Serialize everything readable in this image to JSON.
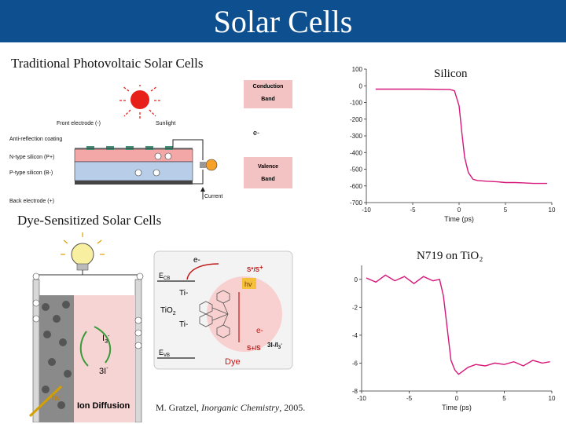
{
  "slide": {
    "title": "Solar Cells",
    "heading_traditional": "Traditional Photovoltaic Solar Cells",
    "heading_dye": "Dye-Sensitized Solar Cells",
    "citation_prefix": "M. Gratzel, ",
    "citation_journal": "Inorganic Chemistry",
    "citation_suffix": ", 2005."
  },
  "pv_diagram": {
    "labels": [
      "Front electrode (-)",
      "Sunlight",
      "Anti-reflection coating",
      "N-type silicon (P+)",
      "P-type silicon (B-)",
      "Back electrode (+)",
      "Current"
    ],
    "band": {
      "conduction1": "Conduction",
      "conduction2": "Band",
      "electron": "e-",
      "valence1": "Valence",
      "valence2": "Band"
    }
  },
  "dssc_diagram": {
    "labels": {
      "ecb": "E",
      "ecb_sub": "CB",
      "ti1": "Ti-",
      "tio2": "TiO",
      "tio2_sub": "2",
      "ti2": "Ti-",
      "evb": "E",
      "evb_sub": "VB",
      "electron": "e-",
      "electron2": "e-",
      "ss1": "S",
      "ss1b": "*/S",
      "ss1c": "+",
      "ss2": "S",
      "ss2b": "+/S",
      "hv": "hv",
      "hv2": "hv",
      "i3": "I",
      "i3_sub": "3",
      "i3_sup": "-",
      "three_i": "3I",
      "three_i_sup": "-",
      "right_i": "3I-/I",
      "right_i_sub": "3",
      "right_i_sup": "-",
      "dye": "Dye",
      "ion": "Ion Diffusion"
    }
  },
  "colors": {
    "banner": "#0e4f8f",
    "curve": "#d6177a",
    "band": "#f3c2c2"
  },
  "chart_data": [
    {
      "type": "line",
      "title": "Silicon",
      "xlabel": "Time (ps)",
      "ylabel": "",
      "xlim": [
        -10,
        10
      ],
      "ylim": [
        -700,
        100
      ],
      "xticks": [
        "-10",
        "-5",
        "0",
        "5",
        "10"
      ],
      "yticks": [
        "100",
        "0",
        "-100",
        "-200",
        "-300",
        "-400",
        "-500",
        "-600",
        "-700"
      ],
      "series": [
        {
          "x": [
            -9,
            -4,
            -1,
            -0.5,
            0,
            0.3,
            0.6,
            1,
            1.5,
            2,
            3,
            4,
            5,
            6,
            7,
            8,
            9.5
          ],
          "y": [
            -20,
            -20,
            -22,
            -30,
            -120,
            -280,
            -430,
            -520,
            -560,
            -568,
            -572,
            -575,
            -580,
            -580,
            -582,
            -585,
            -585
          ]
        }
      ]
    },
    {
      "type": "line",
      "title": "N719 on TiO₂",
      "xlabel": "Time (ps)",
      "ylabel": "",
      "xlim": [
        -10,
        10
      ],
      "ylim": [
        -8,
        1
      ],
      "xticks": [
        "-10",
        "-5",
        "0",
        "5",
        "10"
      ],
      "yticks": [
        "0",
        "-2",
        "-4",
        "-6",
        "-8"
      ],
      "series": [
        {
          "x": [
            -9.5,
            -8.5,
            -7.5,
            -6.5,
            -5.5,
            -4.5,
            -3.5,
            -2.5,
            -1.8,
            -1.4,
            -1.0,
            -0.6,
            -0.2,
            0.2,
            0.6,
            1.2,
            2,
            3,
            4,
            5,
            6,
            7,
            8,
            9,
            9.8
          ],
          "y": [
            0.1,
            -0.2,
            0.3,
            -0.1,
            0.2,
            -0.3,
            0.2,
            -0.1,
            0,
            -1.2,
            -3.5,
            -5.8,
            -6.5,
            -6.8,
            -6.6,
            -6.3,
            -6.1,
            -6.2,
            -6.0,
            -6.1,
            -5.9,
            -6.2,
            -5.8,
            -6.0,
            -5.9
          ]
        }
      ]
    }
  ]
}
